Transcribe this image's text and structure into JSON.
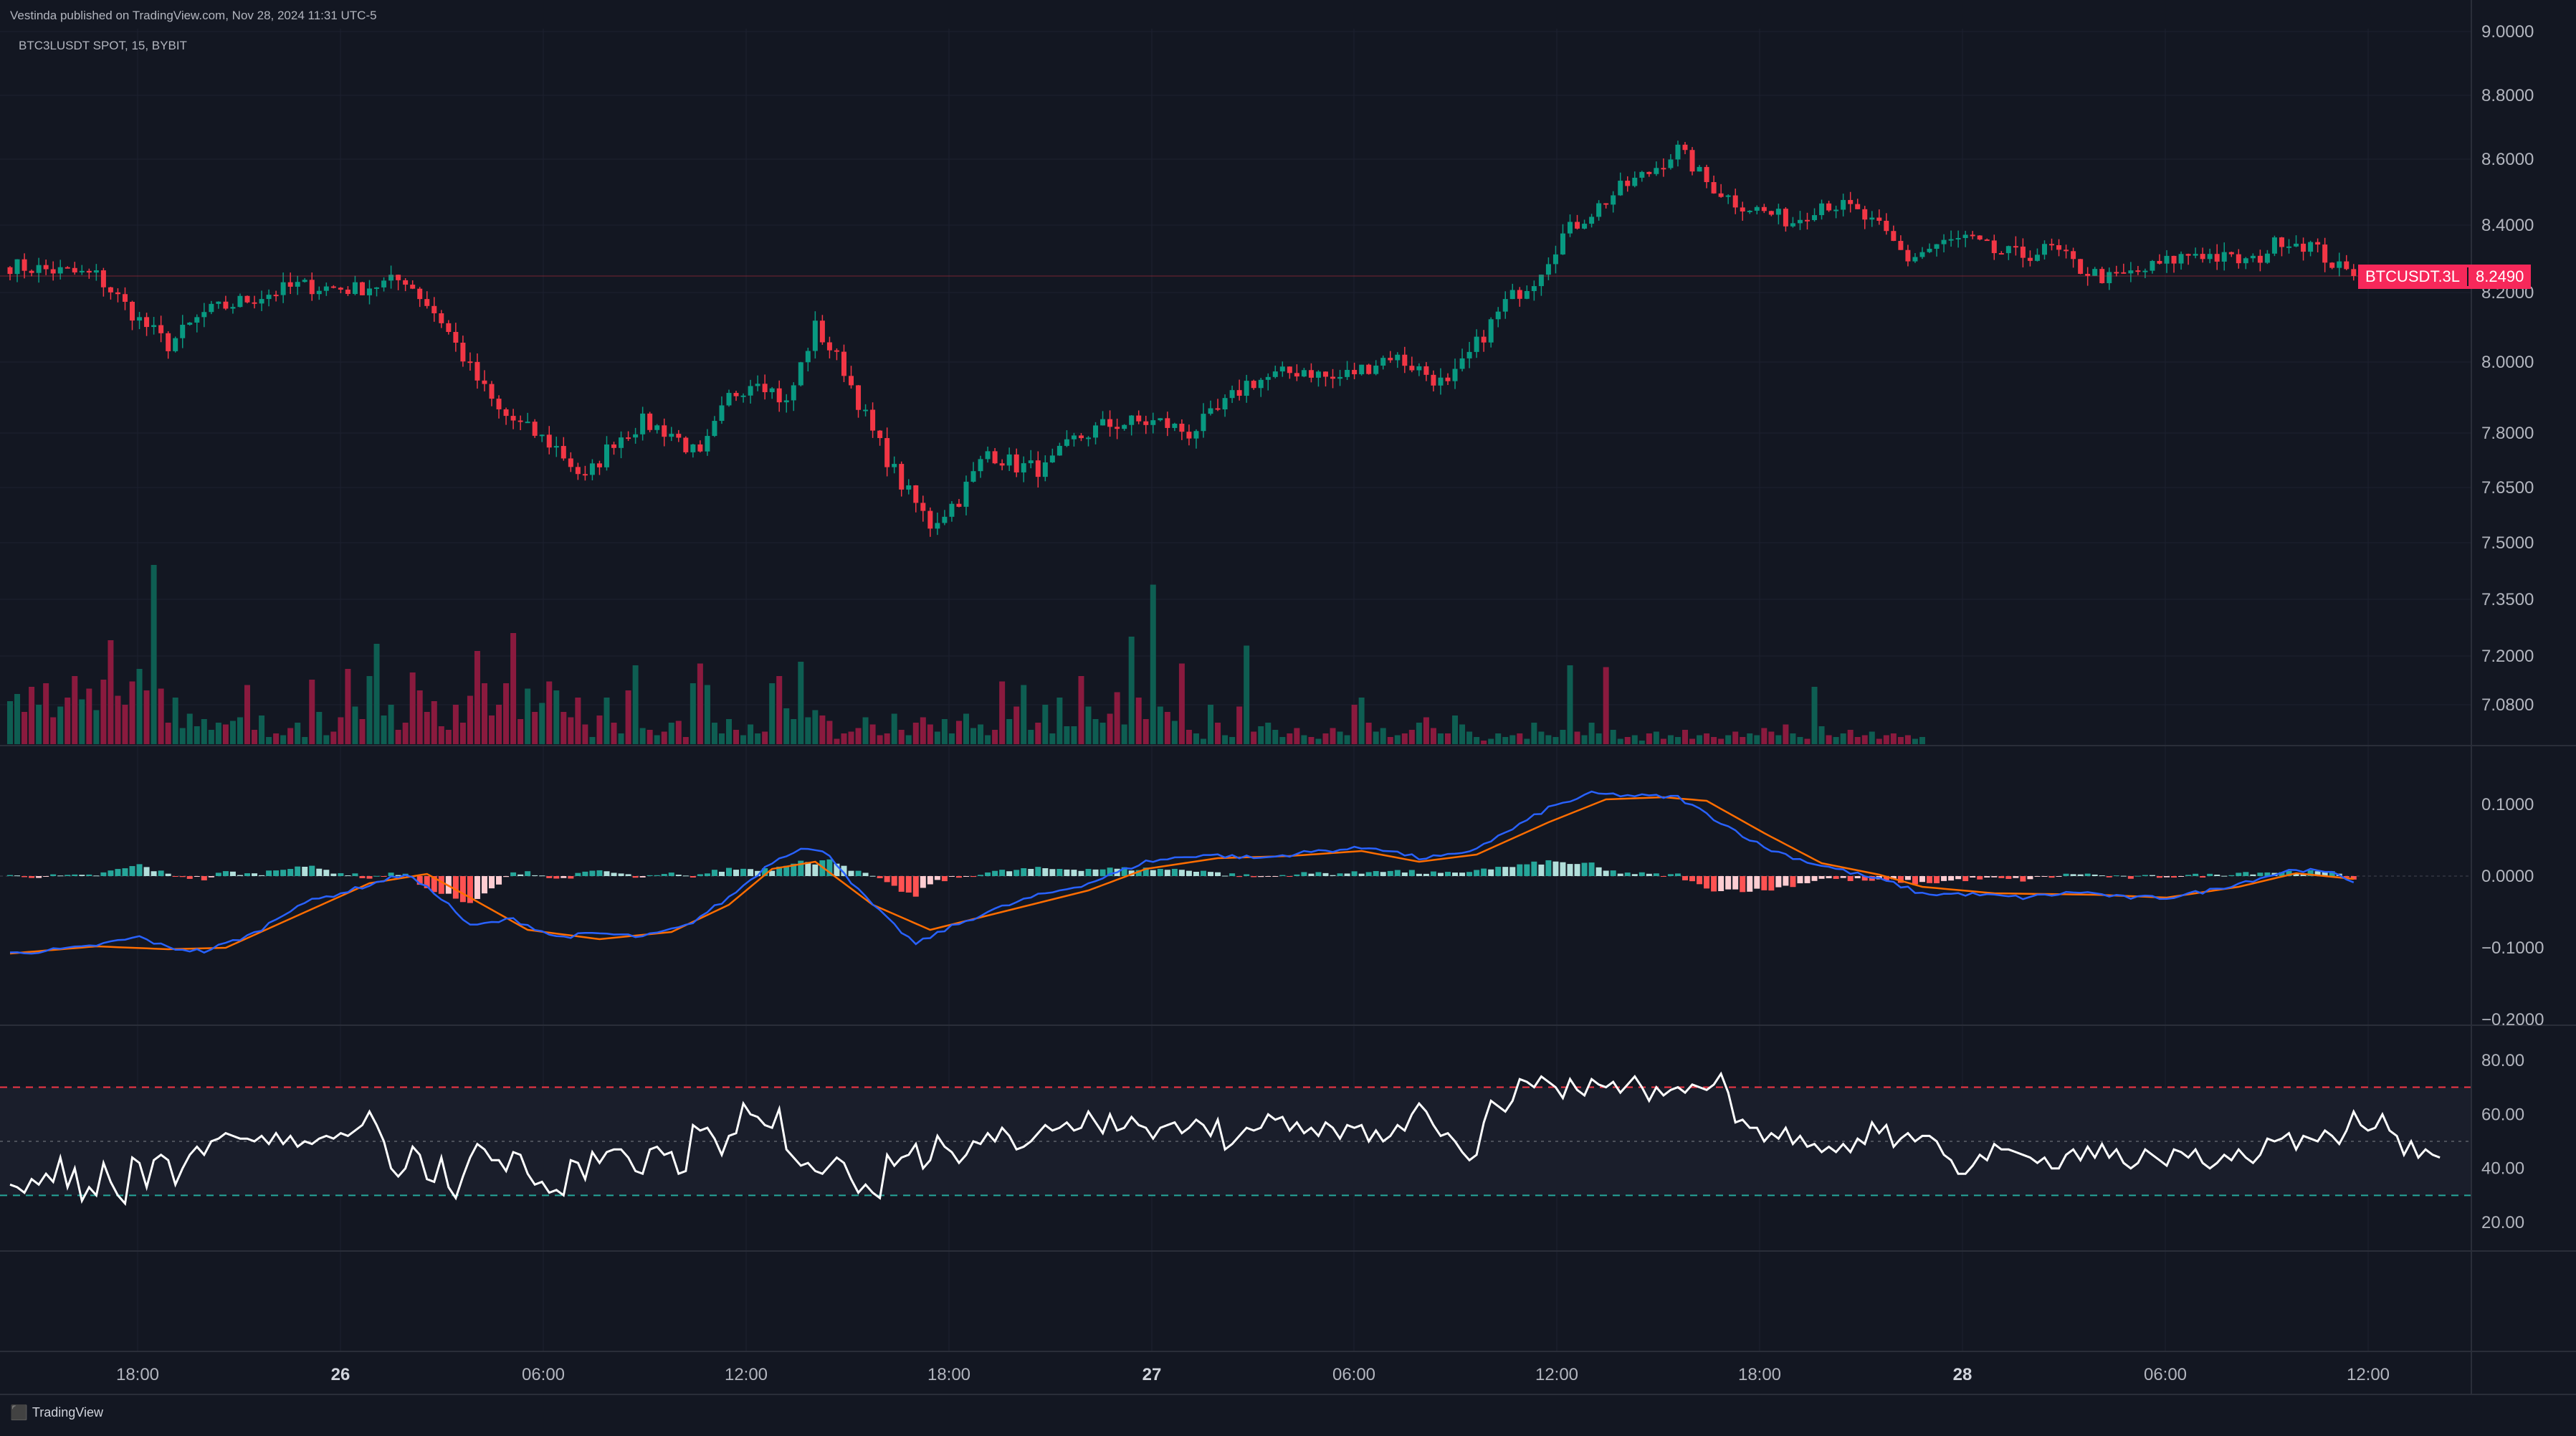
{
  "header": {
    "publish_line": "Vestinda published on TradingView.com, Nov 28, 2024 11:31 UTC-5",
    "symbol_line": "BTC3LUSDT SPOT, 15, BYBIT"
  },
  "footer": {
    "brand": "TradingView"
  },
  "colors": {
    "background": "#131722",
    "up": "#089981",
    "down": "#f23645",
    "volume_up": "#0e5e52",
    "volume_down": "#8a1a3e",
    "macd_line": "#2962ff",
    "signal_line": "#ff6d00",
    "hist_up_strong": "#26a69a",
    "hist_up_weak": "#b2dfdb",
    "hist_down_strong": "#ff5252",
    "hist_down_weak": "#ffcdd2",
    "rsi_line": "#ffffff",
    "rsi_upper_band": "#f23645",
    "rsi_lower_band": "#26a69a",
    "price_label_bg": "#f7285a"
  },
  "chart_data": [
    {
      "type": "candlestick",
      "symbol": "BTC3LUSDT",
      "exchange": "BYBIT",
      "interval": "15",
      "price_axis": [
        "9.0000",
        "8.8000",
        "8.6000",
        "8.4000",
        "8.2000",
        "8.0000",
        "7.8000",
        "7.6500",
        "7.5000",
        "7.3500",
        "7.2000",
        "7.0800"
      ],
      "time_axis": [
        {
          "label": "18:00",
          "bold": false
        },
        {
          "label": "26",
          "bold": true
        },
        {
          "label": "06:00",
          "bold": false
        },
        {
          "label": "12:00",
          "bold": false
        },
        {
          "label": "18:00",
          "bold": false
        },
        {
          "label": "27",
          "bold": true
        },
        {
          "label": "06:00",
          "bold": false
        },
        {
          "label": "12:00",
          "bold": false
        },
        {
          "label": "18:00",
          "bold": false
        },
        {
          "label": "28",
          "bold": true
        },
        {
          "label": "06:00",
          "bold": false
        },
        {
          "label": "12:00",
          "bold": false
        }
      ],
      "last_price": {
        "name": "BTCUSDT.3L",
        "value": "8.2490"
      },
      "close_path": [
        [
          0,
          8.28
        ],
        [
          12,
          8.25
        ],
        [
          18,
          8.12
        ],
        [
          22,
          8.05
        ],
        [
          27,
          8.14
        ],
        [
          33,
          8.18
        ],
        [
          40,
          8.22
        ],
        [
          48,
          8.21
        ],
        [
          55,
          8.24
        ],
        [
          60,
          8.12
        ],
        [
          64,
          7.98
        ],
        [
          68,
          7.86
        ],
        [
          72,
          7.81
        ],
        [
          76,
          7.76
        ],
        [
          80,
          7.67
        ],
        [
          84,
          7.78
        ],
        [
          88,
          7.83
        ],
        [
          92,
          7.8
        ],
        [
          96,
          7.73
        ],
        [
          100,
          7.9
        ],
        [
          104,
          7.96
        ],
        [
          108,
          7.88
        ],
        [
          112,
          8.1
        ],
        [
          116,
          7.98
        ],
        [
          120,
          7.8
        ],
        [
          124,
          7.66
        ],
        [
          128,
          7.55
        ],
        [
          132,
          7.62
        ],
        [
          136,
          7.75
        ],
        [
          140,
          7.71
        ],
        [
          144,
          7.7
        ],
        [
          148,
          7.78
        ],
        [
          152,
          7.82
        ],
        [
          156,
          7.83
        ],
        [
          160,
          7.83
        ],
        [
          164,
          7.8
        ],
        [
          168,
          7.86
        ],
        [
          172,
          7.94
        ],
        [
          176,
          7.96
        ],
        [
          180,
          7.98
        ],
        [
          184,
          7.95
        ],
        [
          188,
          7.98
        ],
        [
          192,
          8.02
        ],
        [
          196,
          7.98
        ],
        [
          200,
          7.93
        ],
        [
          204,
          8.05
        ],
        [
          208,
          8.17
        ],
        [
          212,
          8.24
        ],
        [
          216,
          8.37
        ],
        [
          220,
          8.44
        ],
        [
          224,
          8.51
        ],
        [
          228,
          8.56
        ],
        [
          232,
          8.63
        ],
        [
          236,
          8.53
        ],
        [
          240,
          8.47
        ],
        [
          244,
          8.44
        ],
        [
          248,
          8.41
        ],
        [
          252,
          8.47
        ],
        [
          256,
          8.45
        ],
        [
          260,
          8.39
        ],
        [
          264,
          8.3
        ],
        [
          268,
          8.34
        ],
        [
          272,
          8.36
        ],
        [
          276,
          8.32
        ],
        [
          280,
          8.31
        ],
        [
          284,
          8.33
        ],
        [
          288,
          8.27
        ],
        [
          292,
          8.24
        ],
        [
          296,
          8.26
        ],
        [
          300,
          8.29
        ],
        [
          304,
          8.32
        ],
        [
          308,
          8.3
        ],
        [
          312,
          8.29
        ],
        [
          316,
          8.36
        ],
        [
          320,
          8.34
        ],
        [
          324,
          8.27
        ],
        [
          326,
          8.249
        ]
      ]
    },
    {
      "type": "bar",
      "name": "volume",
      "values": [
        0.24,
        0.28,
        0.18,
        0.32,
        0.22,
        0.34,
        0.15,
        0.21,
        0.26,
        0.38,
        0.25,
        0.31,
        0.19,
        0.36,
        0.58,
        0.27,
        0.22,
        0.35,
        0.42,
        0.3,
        1.0,
        0.31,
        0.12,
        0.26,
        0.09,
        0.17,
        0.1,
        0.14,
        0.08,
        0.12,
        0.11,
        0.13,
        0.15,
        0.33,
        0.08,
        0.16,
        0.04,
        0.06,
        0.05,
        0.09,
        0.12,
        0.04,
        0.36,
        0.18,
        0.05,
        0.07,
        0.15,
        0.42,
        0.21,
        0.14,
        0.38,
        0.56,
        0.16,
        0.22,
        0.08,
        0.12,
        0.4,
        0.3,
        0.18,
        0.24,
        0.1,
        0.08,
        0.22,
        0.12,
        0.27,
        0.52,
        0.34,
        0.16,
        0.22,
        0.34,
        0.62,
        0.14,
        0.31,
        0.18,
        0.23,
        0.35,
        0.3,
        0.18,
        0.15,
        0.26,
        0.11,
        0.04,
        0.16,
        0.26,
        0.12,
        0.06,
        0.3,
        0.44,
        0.09,
        0.08,
        0.05,
        0.07,
        0.12,
        0.13,
        0.04,
        0.34,
        0.45,
        0.33,
        0.12,
        0.06,
        0.14,
        0.08,
        0.05,
        0.11,
        0.06,
        0.07,
        0.34,
        0.38,
        0.2,
        0.14,
        0.46,
        0.15,
        0.19,
        0.16,
        0.13,
        0.03,
        0.06,
        0.07,
        0.09,
        0.15,
        0.11,
        0.05,
        0.06,
        0.17,
        0.08,
        0.05,
        0.12,
        0.15,
        0.11,
        0.07,
        0.14,
        0.06,
        0.13,
        0.17,
        0.09,
        0.11,
        0.05,
        0.08,
        0.35,
        0.14,
        0.21,
        0.33,
        0.08,
        0.12,
        0.22,
        0.06,
        0.26,
        0.1,
        0.1,
        0.38,
        0.21,
        0.14,
        0.12,
        0.17,
        0.29,
        0.11,
        0.6,
        0.26,
        0.14,
        0.89,
        0.21,
        0.18,
        0.13,
        0.45,
        0.08,
        0.06,
        0.03,
        0.22,
        0.12,
        0.05,
        0.04,
        0.21,
        0.55,
        0.07,
        0.1,
        0.12,
        0.08,
        0.04,
        0.06,
        0.09,
        0.05,
        0.04,
        0.03,
        0.06,
        0.09,
        0.07,
        0.05,
        0.22,
        0.26,
        0.12,
        0.07,
        0.09,
        0.04,
        0.05,
        0.06,
        0.08,
        0.12,
        0.15,
        0.09,
        0.06,
        0.06,
        0.16,
        0.11,
        0.07,
        0.04,
        0.02,
        0.03,
        0.06,
        0.04,
        0.05,
        0.06,
        0.03,
        0.12,
        0.07,
        0.05,
        0.04,
        0.08,
        0.44,
        0.07,
        0.05,
        0.12,
        0.06,
        0.43,
        0.08,
        0.03,
        0.04,
        0.05,
        0.02,
        0.06,
        0.07,
        0.03,
        0.05,
        0.04,
        0.08,
        0.03,
        0.05,
        0.06,
        0.04,
        0.03,
        0.05,
        0.07,
        0.04,
        0.06,
        0.05,
        0.09,
        0.07,
        0.05,
        0.11,
        0.06,
        0.04,
        0.03,
        0.32,
        0.1,
        0.05,
        0.04,
        0.06,
        0.08,
        0.04,
        0.05,
        0.07,
        0.03,
        0.05,
        0.06,
        0.04,
        0.05,
        0.03,
        0.04
      ]
    },
    {
      "type": "line",
      "name": "macd",
      "y_axis": [
        "0.1000",
        "0.0000",
        "−0.1000",
        "−0.2000"
      ],
      "ylim": [
        -0.2,
        0.12
      ],
      "macd_path": [
        [
          0,
          -0.108
        ],
        [
          10,
          -0.1
        ],
        [
          18,
          -0.085
        ],
        [
          22,
          -0.1
        ],
        [
          27,
          -0.105
        ],
        [
          34,
          -0.08
        ],
        [
          40,
          -0.04
        ],
        [
          48,
          -0.018
        ],
        [
          55,
          0.003
        ],
        [
          60,
          -0.03
        ],
        [
          64,
          -0.07
        ],
        [
          70,
          -0.06
        ],
        [
          76,
          -0.085
        ],
        [
          82,
          -0.08
        ],
        [
          88,
          -0.085
        ],
        [
          94,
          -0.07
        ],
        [
          100,
          -0.03
        ],
        [
          106,
          0.02
        ],
        [
          110,
          0.04
        ],
        [
          114,
          0.03
        ],
        [
          118,
          -0.02
        ],
        [
          122,
          -0.06
        ],
        [
          126,
          -0.095
        ],
        [
          130,
          -0.075
        ],
        [
          136,
          -0.05
        ],
        [
          142,
          -0.03
        ],
        [
          150,
          -0.01
        ],
        [
          158,
          0.02
        ],
        [
          166,
          0.03
        ],
        [
          174,
          0.025
        ],
        [
          182,
          0.035
        ],
        [
          190,
          0.04
        ],
        [
          196,
          0.025
        ],
        [
          202,
          0.03
        ],
        [
          208,
          0.06
        ],
        [
          214,
          0.095
        ],
        [
          220,
          0.115
        ],
        [
          226,
          0.112
        ],
        [
          232,
          0.11
        ],
        [
          238,
          0.075
        ],
        [
          244,
          0.04
        ],
        [
          250,
          0.02
        ],
        [
          256,
          0.005
        ],
        [
          262,
          -0.01
        ],
        [
          266,
          -0.025
        ],
        [
          272,
          -0.025
        ],
        [
          280,
          -0.03
        ],
        [
          288,
          -0.022
        ],
        [
          294,
          -0.03
        ],
        [
          300,
          -0.03
        ],
        [
          306,
          -0.02
        ],
        [
          312,
          -0.005
        ],
        [
          318,
          0.01
        ],
        [
          324,
          0.002
        ],
        [
          326,
          -0.008
        ]
      ],
      "signal_path": [
        [
          0,
          -0.108
        ],
        [
          12,
          -0.098
        ],
        [
          22,
          -0.102
        ],
        [
          30,
          -0.1
        ],
        [
          40,
          -0.055
        ],
        [
          50,
          -0.01
        ],
        [
          58,
          0.003
        ],
        [
          64,
          -0.03
        ],
        [
          72,
          -0.075
        ],
        [
          82,
          -0.088
        ],
        [
          92,
          -0.078
        ],
        [
          100,
          -0.04
        ],
        [
          106,
          0.01
        ],
        [
          112,
          0.02
        ],
        [
          120,
          -0.04
        ],
        [
          128,
          -0.075
        ],
        [
          140,
          -0.045
        ],
        [
          150,
          -0.02
        ],
        [
          158,
          0.01
        ],
        [
          168,
          0.025
        ],
        [
          178,
          0.028
        ],
        [
          188,
          0.035
        ],
        [
          196,
          0.02
        ],
        [
          204,
          0.03
        ],
        [
          214,
          0.075
        ],
        [
          222,
          0.107
        ],
        [
          230,
          0.11
        ],
        [
          236,
          0.105
        ],
        [
          244,
          0.06
        ],
        [
          252,
          0.018
        ],
        [
          260,
          0.002
        ],
        [
          266,
          -0.015
        ],
        [
          276,
          -0.024
        ],
        [
          290,
          -0.026
        ],
        [
          300,
          -0.03
        ],
        [
          310,
          -0.015
        ],
        [
          318,
          0.004
        ],
        [
          326,
          -0.004
        ]
      ]
    },
    {
      "type": "line",
      "name": "rsi",
      "y_axis": [
        "80.00",
        "60.00",
        "40.00",
        "20.00"
      ],
      "ylim": [
        10,
        85
      ],
      "bands": [
        70,
        30
      ],
      "mid": 50,
      "values": [
        34,
        33,
        31,
        36,
        34,
        38,
        35,
        44,
        33,
        40,
        28,
        33,
        30,
        42,
        35,
        30,
        27,
        44,
        42,
        33,
        43,
        45,
        43,
        34,
        40,
        45,
        48,
        45,
        50,
        51,
        53,
        52,
        51,
        51,
        50,
        52,
        49,
        53,
        49,
        52,
        48,
        50,
        49,
        51,
        52,
        51,
        53,
        52,
        54,
        56,
        61,
        56,
        50,
        40,
        37,
        40,
        48,
        45,
        36,
        35,
        44,
        33,
        29,
        37,
        44,
        49,
        47,
        43,
        43,
        39,
        46,
        45,
        38,
        34,
        35,
        31,
        32,
        30,
        43,
        42,
        36,
        46,
        42,
        46,
        47,
        47,
        44,
        39,
        38,
        47,
        48,
        45,
        46,
        38,
        39,
        56,
        54,
        55,
        51,
        45,
        52,
        53,
        64,
        60,
        59,
        56,
        55,
        62,
        47,
        44,
        41,
        42,
        39,
        38,
        41,
        44,
        42,
        36,
        31,
        34,
        31,
        29,
        45,
        41,
        44,
        45,
        49,
        40,
        43,
        52,
        48,
        46,
        42,
        45,
        50,
        49,
        53,
        50,
        55,
        52,
        47,
        48,
        50,
        53,
        56,
        54,
        55,
        57,
        54,
        55,
        61,
        57,
        53,
        60,
        54,
        55,
        59,
        56,
        55,
        51,
        55,
        56,
        57,
        53,
        55,
        58,
        56,
        52,
        58,
        47,
        49,
        52,
        55,
        54,
        55,
        60,
        58,
        59,
        54,
        57,
        53,
        55,
        52,
        57,
        55,
        51,
        56,
        55,
        56,
        50,
        54,
        50,
        52,
        56,
        54,
        60,
        64,
        61,
        56,
        52,
        53,
        50,
        46,
        43,
        45,
        57,
        65,
        63,
        61,
        65,
        73,
        72,
        70,
        74,
        72,
        70,
        66,
        73,
        69,
        67,
        73,
        71,
        70,
        72,
        68,
        71,
        74,
        70,
        65,
        70,
        67,
        69,
        70,
        68,
        71,
        70,
        69,
        71,
        75,
        68,
        57,
        58,
        55,
        55,
        50,
        53,
        51,
        55,
        49,
        52,
        48,
        49,
        46,
        48,
        46,
        49,
        46,
        51,
        49,
        57,
        53,
        56,
        48,
        51,
        53,
        50,
        52,
        52,
        50,
        45,
        43,
        38,
        38,
        41,
        45,
        43,
        49,
        47,
        47,
        46,
        45,
        44,
        42,
        44,
        40,
        40,
        45,
        47,
        43,
        48,
        44,
        49,
        44,
        47,
        42,
        40,
        42,
        47,
        45,
        43,
        41,
        47,
        46,
        44,
        47,
        42,
        40,
        42,
        45,
        43,
        47,
        44,
        42,
        45,
        51,
        50,
        51,
        53,
        47,
        52,
        51,
        50,
        54,
        52,
        49,
        54,
        61,
        56,
        54,
        55,
        60,
        54,
        52,
        45,
        50,
        44,
        47,
        45,
        44
      ]
    }
  ]
}
